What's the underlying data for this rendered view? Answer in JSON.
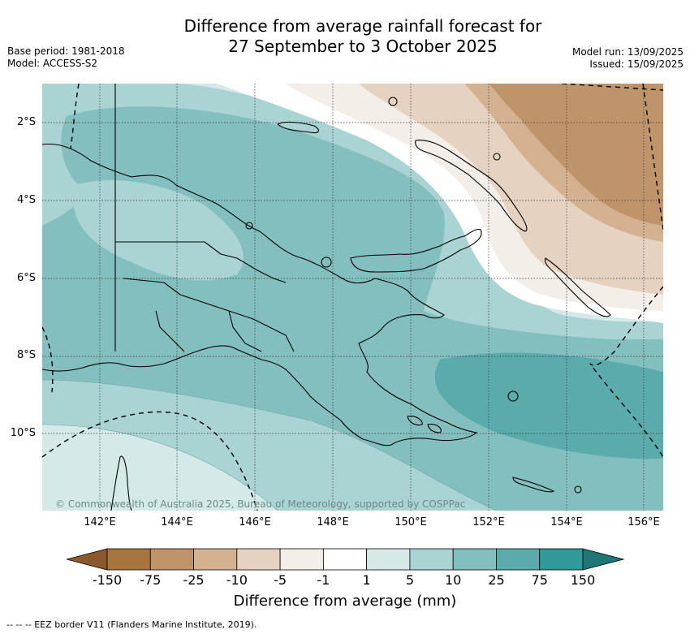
{
  "title_line1": "Difference from average rainfall forecast for",
  "title_line2": "27 September to 3 October 2025",
  "base_period": "Base period: 1981-2018",
  "model": "Model: ACCESS-S2",
  "model_run": "Model run: 13/09/2025",
  "issued": "Issued: 15/09/2025",
  "lat_labels": [
    "2°S",
    "4°S",
    "6°S",
    "8°S",
    "10°S"
  ],
  "lon_labels": [
    "142°E",
    "144°E",
    "146°E",
    "148°E",
    "150°E",
    "152°E",
    "154°E",
    "156°E"
  ],
  "copyright": "© Commonwealth of Australia 2025, Bureau of Meteorology, supported by COSPPac",
  "colorbar": {
    "ticks": [
      "-150",
      "-75",
      "-25",
      "-10",
      "-5",
      "-1",
      "1",
      "5",
      "10",
      "25",
      "75",
      "150"
    ],
    "colors": [
      "#8c5a2a",
      "#a8743e",
      "#c0946a",
      "#d4b291",
      "#e6d2c0",
      "#f3eee8",
      "#ffffff",
      "#d5e9e9",
      "#aad3d3",
      "#84bfbf",
      "#5aabab",
      "#31999a",
      "#1e7775"
    ],
    "label": "Difference from average (mm)"
  },
  "footnote": "--  --  -- EEZ border V11 (Flanders Marine Institute, 2019).",
  "map_extent": {
    "lon_min": 140.8,
    "lon_max": 156.4,
    "lat_min": -11.9,
    "lat_max": -1.0
  }
}
